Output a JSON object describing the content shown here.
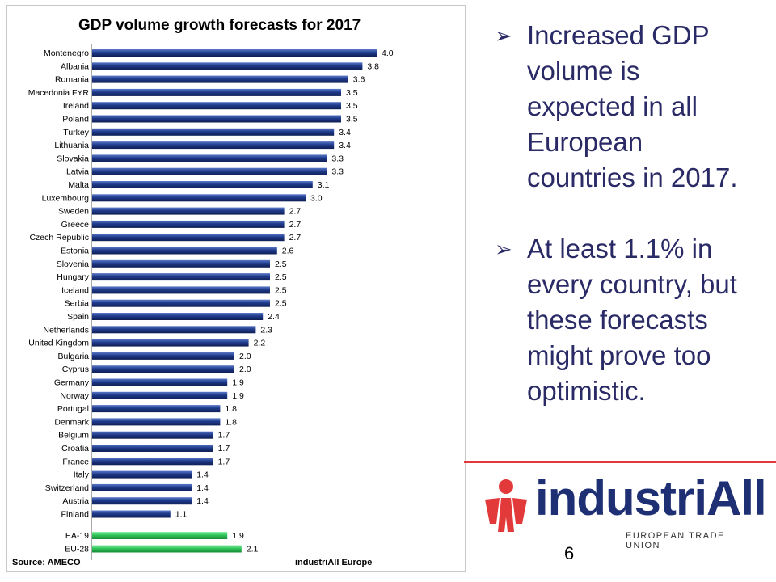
{
  "chart_data": {
    "type": "bar",
    "orientation": "horizontal",
    "title": "GDP volume growth forecasts for 2017",
    "categories": [
      "Montenegro",
      "Albania",
      "Romania",
      "Macedonia FYR",
      "Ireland",
      "Poland",
      "Turkey",
      "Lithuania",
      "Slovakia",
      "Latvia",
      "Malta",
      "Luxembourg",
      "Sweden",
      "Greece",
      "Czech Republic",
      "Estonia",
      "Slovenia",
      "Hungary",
      "Iceland",
      "Serbia",
      "Spain",
      "Netherlands",
      "United Kingdom",
      "Bulgaria",
      "Cyprus",
      "Germany",
      "Norway",
      "Portugal",
      "Denmark",
      "Belgium",
      "Croatia",
      "France",
      "Italy",
      "Switzerland",
      "Austria",
      "Finland"
    ],
    "values": [
      4.0,
      3.8,
      3.6,
      3.5,
      3.5,
      3.5,
      3.4,
      3.4,
      3.3,
      3.3,
      3.1,
      3.0,
      2.7,
      2.7,
      2.7,
      2.6,
      2.5,
      2.5,
      2.5,
      2.5,
      2.4,
      2.3,
      2.2,
      2.0,
      2.0,
      1.9,
      1.9,
      1.8,
      1.8,
      1.7,
      1.7,
      1.7,
      1.4,
      1.4,
      1.4,
      1.1
    ],
    "aggregates": {
      "categories": [
        "EA-19",
        "EU-28"
      ],
      "values": [
        1.9,
        2.1
      ]
    },
    "xlim": [
      0,
      4.0
    ],
    "grid": false,
    "colors": {
      "country_bar": "#1f3a8a",
      "aggregate_bar": "#2fc45a"
    },
    "source": "Source: AMECO",
    "credit": "industriAll Europe"
  },
  "bullets": [
    "Increased GDP volume is expected in all European countries in 2017.",
    "At least 1.1% in every country, but these forecasts might prove too optimistic."
  ],
  "logo": {
    "wordmark": "industriAll",
    "subtitle": "EUROPEAN TRADE UNION",
    "color": "#1f2f74",
    "accent": "#e23a3a"
  },
  "page_number": "6"
}
